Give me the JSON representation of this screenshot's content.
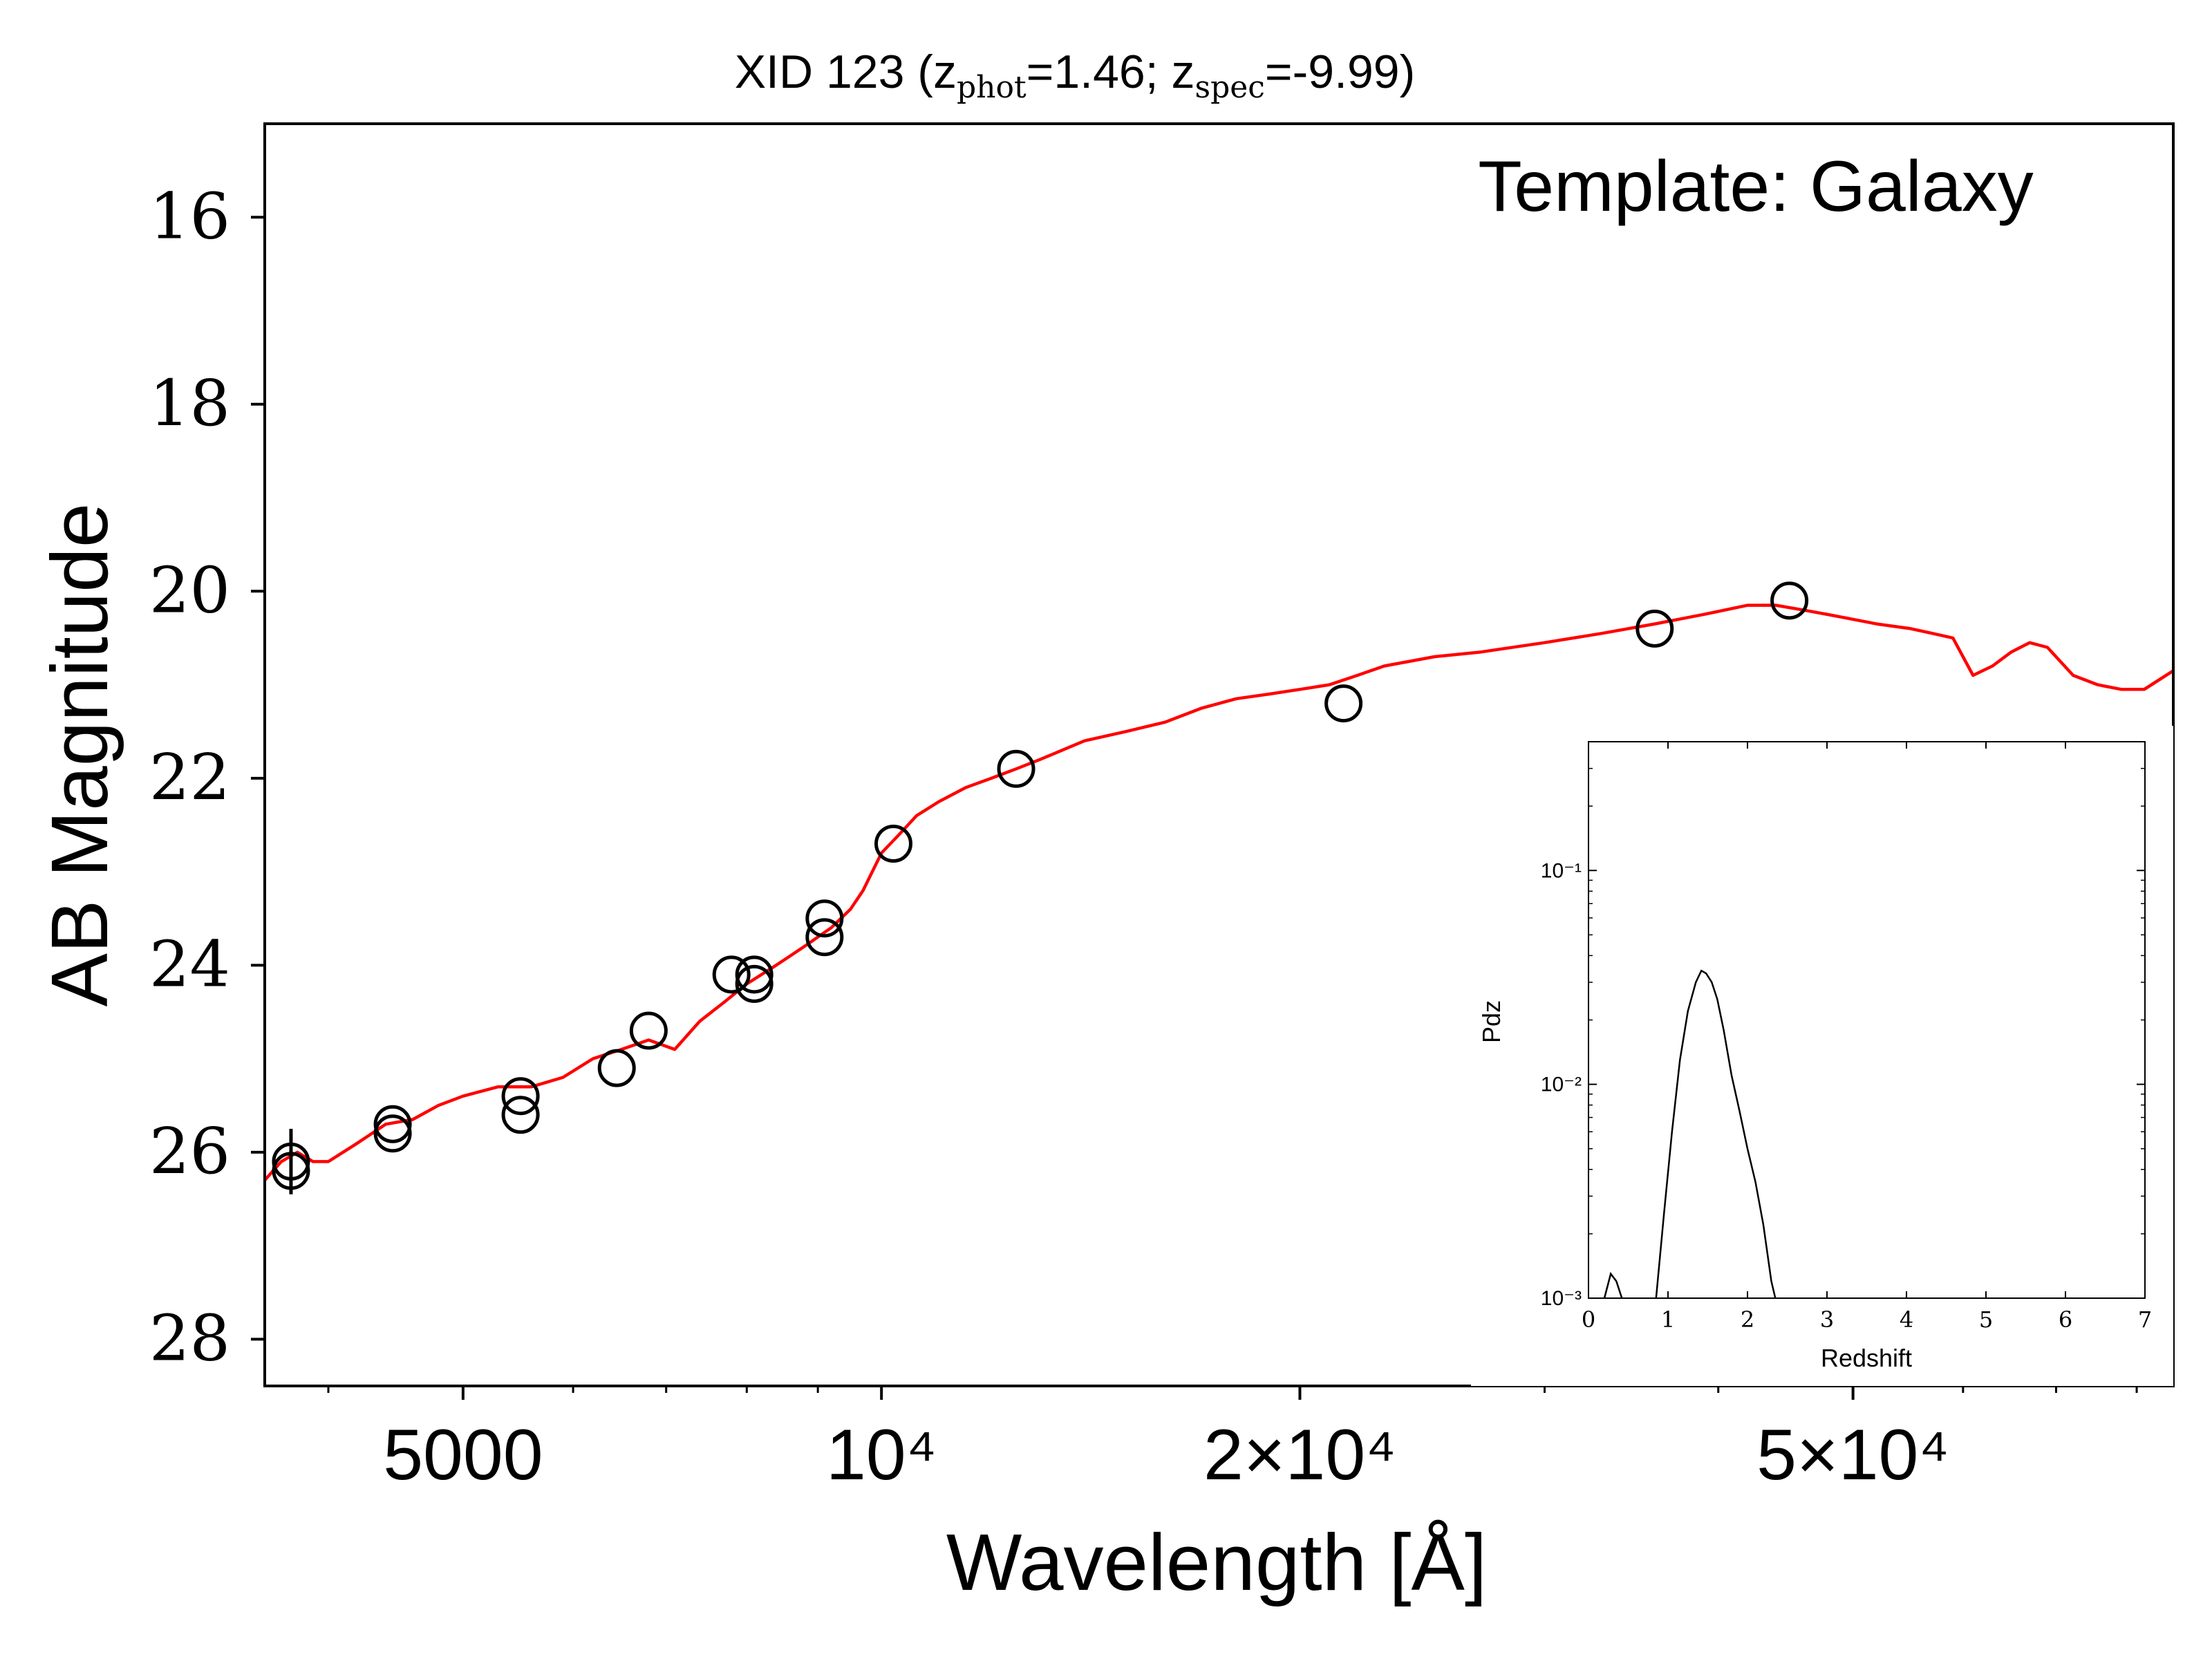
{
  "chart_data": [
    {
      "type": "scatter",
      "title": {
        "prefix": "XID 123 (z",
        "phot_sub": "phot",
        "phot_val": "=1.46; z",
        "spec_sub": "spec",
        "spec_val": "=-9.99)"
      },
      "annotation": "Template: Galaxy",
      "xlabel": "Wavelength [Å]",
      "ylabel": "AB Magnitude",
      "xscale": "log",
      "yaxis_inverted": true,
      "xlim": [
        3600,
        85000
      ],
      "ylim": [
        28.5,
        15.0
      ],
      "xticks": [
        {
          "value": 5000,
          "label": "5000"
        },
        {
          "value": 10000,
          "label": "10⁴"
        },
        {
          "value": 20000,
          "label": "2×10⁴"
        },
        {
          "value": 50000,
          "label": "5×10⁴"
        }
      ],
      "yticks": [
        {
          "value": 16,
          "label": "16"
        },
        {
          "value": 18,
          "label": "18"
        },
        {
          "value": 20,
          "label": "20"
        },
        {
          "value": 22,
          "label": "22"
        },
        {
          "value": 24,
          "label": "24"
        },
        {
          "value": 26,
          "label": "26"
        },
        {
          "value": 28,
          "label": "28"
        }
      ],
      "series": [
        {
          "kind": "observed photometry (open circles)",
          "color": "#000000",
          "points": [
            {
              "x": 3760,
              "y": 26.1,
              "err": 0.35
            },
            {
              "x": 3760,
              "y": 26.2,
              "err": 0.0
            },
            {
              "x": 4450,
              "y": 25.7,
              "err": 0.0
            },
            {
              "x": 4450,
              "y": 25.8,
              "err": 0.0
            },
            {
              "x": 5500,
              "y": 25.4,
              "err": 0.0
            },
            {
              "x": 5500,
              "y": 25.6,
              "err": 0.0
            },
            {
              "x": 6450,
              "y": 25.1,
              "err": 0.0
            },
            {
              "x": 6800,
              "y": 24.7,
              "err": 0.0
            },
            {
              "x": 7800,
              "y": 24.1,
              "err": 0.0
            },
            {
              "x": 8100,
              "y": 24.1,
              "err": 0.0
            },
            {
              "x": 8100,
              "y": 24.2,
              "err": 0.0
            },
            {
              "x": 9100,
              "y": 23.5,
              "err": 0.0
            },
            {
              "x": 9100,
              "y": 23.7,
              "err": 0.0
            },
            {
              "x": 10200,
              "y": 22.7,
              "err": 0.0
            },
            {
              "x": 12500,
              "y": 21.9,
              "err": 0.0
            },
            {
              "x": 21500,
              "y": 21.2,
              "err": 0.0
            },
            {
              "x": 36000,
              "y": 20.4,
              "err": 0.0
            },
            {
              "x": 45000,
              "y": 20.1,
              "err": 0.0
            }
          ]
        },
        {
          "kind": "best-fit galaxy template (line)",
          "color": "#ff0000",
          "x": [
            3600,
            3700,
            3800,
            3900,
            4000,
            4200,
            4400,
            4600,
            4800,
            5000,
            5300,
            5600,
            5900,
            6200,
            6500,
            6800,
            7100,
            7400,
            7700,
            8000,
            8400,
            8800,
            9200,
            9500,
            9700,
            10000,
            10300,
            10600,
            11000,
            11500,
            12000,
            12500,
            13000,
            14000,
            15000,
            16000,
            17000,
            18000,
            19000,
            20000,
            21000,
            22000,
            23000,
            25000,
            27000,
            30000,
            33000,
            36000,
            39000,
            42000,
            44000,
            46000,
            48000,
            50000,
            52000,
            55000,
            57000,
            59000,
            61000,
            63000,
            65000,
            67000,
            69000,
            72000,
            75000,
            78000,
            81000,
            85000
          ],
          "y": [
            26.3,
            26.1,
            26.0,
            26.1,
            26.1,
            25.9,
            25.7,
            25.65,
            25.5,
            25.4,
            25.3,
            25.3,
            25.2,
            25.0,
            24.9,
            24.8,
            24.9,
            24.6,
            24.4,
            24.2,
            24.0,
            23.8,
            23.6,
            23.4,
            23.2,
            22.8,
            22.6,
            22.4,
            22.25,
            22.1,
            22.0,
            21.9,
            21.8,
            21.6,
            21.5,
            21.4,
            21.25,
            21.15,
            21.1,
            21.05,
            21.0,
            20.9,
            20.8,
            20.7,
            20.65,
            20.55,
            20.45,
            20.35,
            20.25,
            20.15,
            20.15,
            20.2,
            20.25,
            20.3,
            20.35,
            20.4,
            20.45,
            20.5,
            20.9,
            20.8,
            20.65,
            20.55,
            20.6,
            20.9,
            21.0,
            21.05,
            21.05,
            20.85
          ]
        }
      ]
    },
    {
      "type": "line",
      "title": "",
      "xlabel": "Redshift",
      "ylabel": "Pdz",
      "xscale": "linear",
      "yscale": "log",
      "xlim": [
        0,
        7
      ],
      "ylim": [
        0.001,
        0.4
      ],
      "xticks": [
        {
          "value": 0,
          "label": "0"
        },
        {
          "value": 1,
          "label": "1"
        },
        {
          "value": 2,
          "label": "2"
        },
        {
          "value": 3,
          "label": "3"
        },
        {
          "value": 4,
          "label": "4"
        },
        {
          "value": 5,
          "label": "5"
        },
        {
          "value": 6,
          "label": "6"
        },
        {
          "value": 7,
          "label": "7"
        }
      ],
      "yticks": [
        {
          "value": 0.001,
          "label": "10⁻³"
        },
        {
          "value": 0.01,
          "label": "10⁻²"
        },
        {
          "value": 0.1,
          "label": "10⁻¹"
        }
      ],
      "series": [
        {
          "color": "#000000",
          "x": [
            0.2,
            0.28,
            0.35,
            0.42,
            0.85,
            0.95,
            1.05,
            1.15,
            1.25,
            1.35,
            1.42,
            1.48,
            1.55,
            1.62,
            1.7,
            1.8,
            1.9,
            2.0,
            2.1,
            2.2,
            2.3,
            2.35
          ],
          "y": [
            0.001,
            0.0013,
            0.0012,
            0.001,
            0.001,
            0.0025,
            0.006,
            0.013,
            0.022,
            0.03,
            0.034,
            0.033,
            0.03,
            0.025,
            0.018,
            0.011,
            0.0075,
            0.005,
            0.0035,
            0.0022,
            0.0012,
            0.001
          ]
        }
      ]
    }
  ]
}
